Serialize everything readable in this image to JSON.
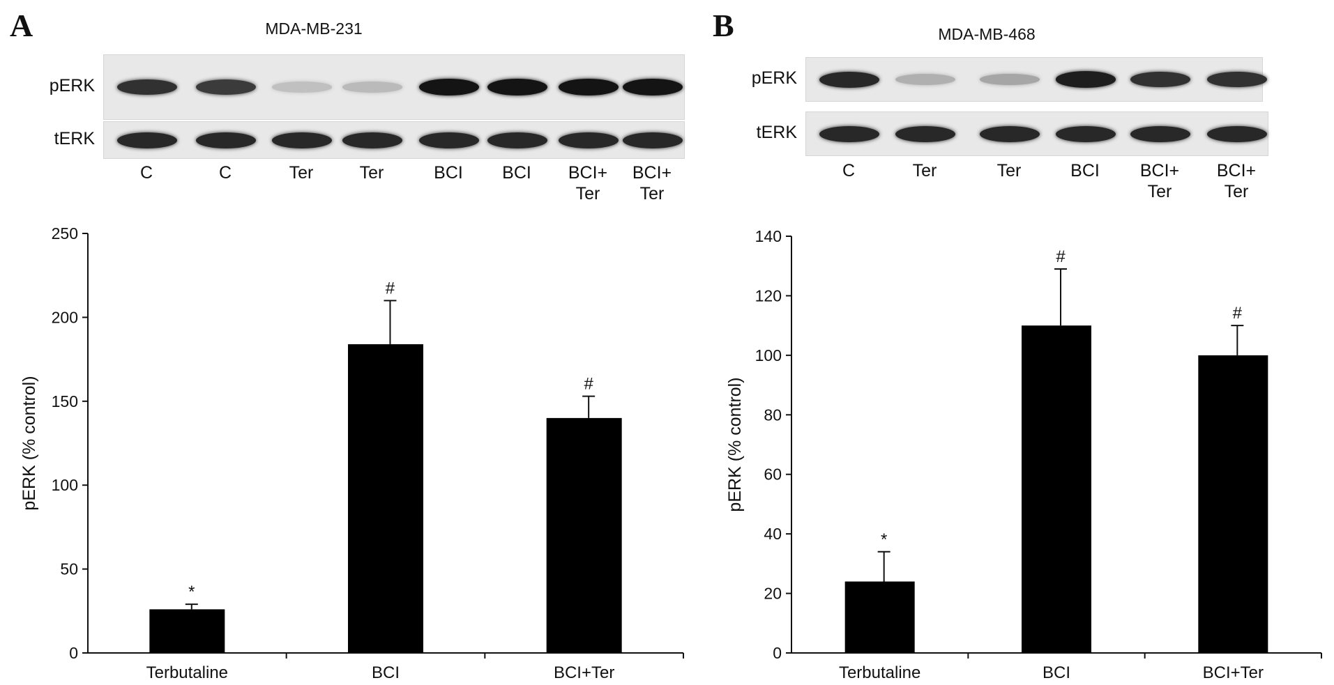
{
  "colors": {
    "bar": "#000000",
    "band": "#1a1a1a",
    "blot_bg": "#e8e8e8"
  },
  "panels": [
    {
      "letter": "A",
      "cell_line": "MDA-MB-231",
      "blot_rows": [
        {
          "label": "pERK",
          "intensity": [
            0.85,
            0.8,
            0.12,
            0.15,
            1.0,
            1.0,
            1.0,
            1.0
          ]
        },
        {
          "label": "tERK",
          "intensity": [
            0.9,
            0.9,
            0.9,
            0.9,
            0.9,
            0.9,
            0.9,
            0.9
          ]
        }
      ],
      "lanes": [
        {
          "line1": "C",
          "line2": ""
        },
        {
          "line1": "C",
          "line2": ""
        },
        {
          "line1": "Ter",
          "line2": ""
        },
        {
          "line1": "Ter",
          "line2": ""
        },
        {
          "line1": "BCI",
          "line2": ""
        },
        {
          "line1": "BCI",
          "line2": ""
        },
        {
          "line1": "BCI+",
          "line2": "Ter"
        },
        {
          "line1": "BCI+",
          "line2": "Ter"
        }
      ]
    },
    {
      "letter": "B",
      "cell_line": "MDA-MB-468",
      "blot_rows": [
        {
          "label": "pERK",
          "intensity": [
            0.9,
            0.2,
            0.25,
            0.95,
            0.85,
            0.85
          ]
        },
        {
          "label": "tERK",
          "intensity": [
            0.9,
            0.9,
            0.9,
            0.9,
            0.9,
            0.9
          ]
        }
      ],
      "lanes": [
        {
          "line1": "C",
          "line2": ""
        },
        {
          "line1": "Ter",
          "line2": ""
        },
        {
          "line1": "Ter",
          "line2": ""
        },
        {
          "line1": "BCI",
          "line2": ""
        },
        {
          "line1": "BCI+",
          "line2": "Ter"
        },
        {
          "line1": "BCI+",
          "line2": "Ter"
        }
      ]
    }
  ],
  "chart_data": [
    {
      "type": "bar",
      "categories": [
        "Terbutaline",
        "BCI",
        "BCI+Ter"
      ],
      "series": [
        {
          "values": [
            26,
            184,
            140
          ],
          "error": [
            3,
            26,
            13
          ]
        }
      ],
      "annotations": [
        "*",
        "#",
        "#"
      ],
      "ylabel": "pERK (% control)",
      "ylim": [
        0,
        250
      ],
      "yticks": [
        0,
        50,
        100,
        150,
        200,
        250
      ],
      "grid": false,
      "legend": "none"
    },
    {
      "type": "bar",
      "categories": [
        "Terbutaline",
        "BCI",
        "BCI+Ter"
      ],
      "series": [
        {
          "values": [
            24,
            110,
            100
          ],
          "error": [
            10,
            19,
            10
          ]
        }
      ],
      "annotations": [
        "*",
        "#",
        "#"
      ],
      "ylabel": "pERK (% control)",
      "ylim": [
        0,
        140
      ],
      "yticks": [
        0,
        20,
        40,
        60,
        80,
        100,
        120,
        140
      ],
      "grid": false,
      "legend": "none"
    }
  ]
}
